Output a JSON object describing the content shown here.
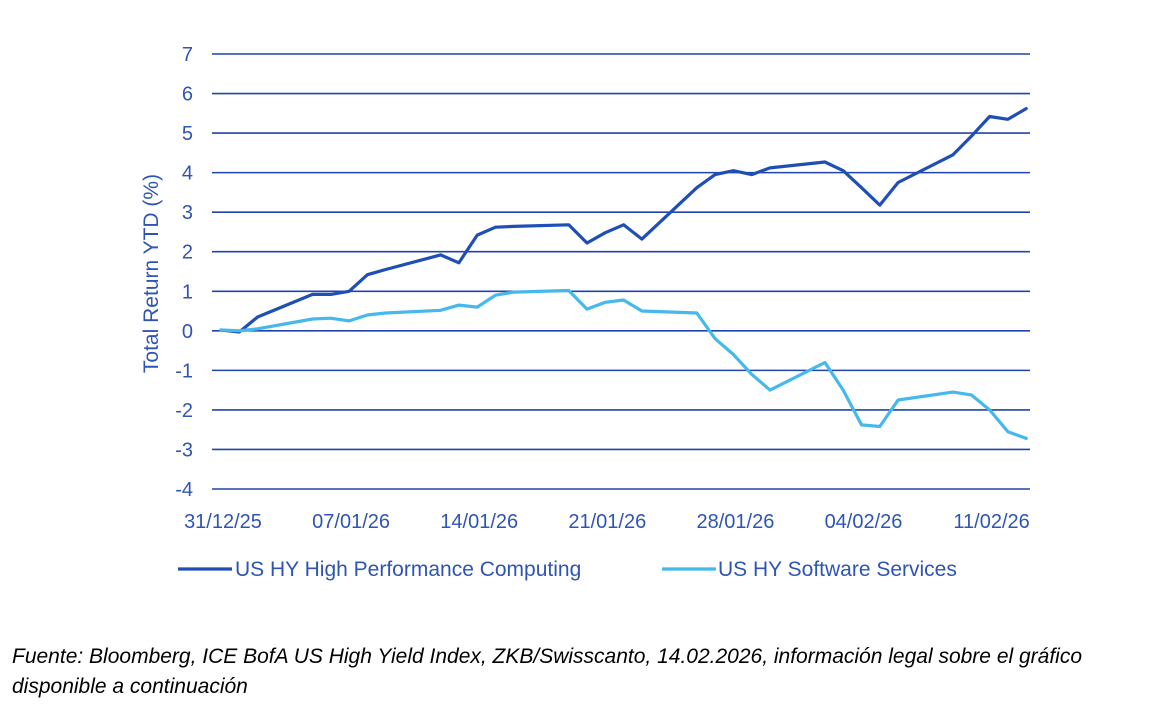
{
  "chart_data": {
    "type": "line",
    "title": "",
    "xlabel": "",
    "ylabel": "Total Return  YTD (%)",
    "ylim": [
      -4,
      7
    ],
    "yticks": [
      7,
      6,
      5,
      4,
      3,
      2,
      1,
      0,
      -1,
      -2,
      -3,
      -4
    ],
    "xticks": [
      "31/12/25",
      "07/01/26",
      "14/01/26",
      "21/01/26",
      "28/01/26",
      "04/02/26",
      "11/02/26"
    ],
    "x_days": [
      0,
      1,
      2,
      5,
      6,
      7,
      8,
      9,
      12,
      13,
      14,
      15,
      16,
      19,
      20,
      21,
      22,
      23,
      26,
      27,
      28,
      29,
      30,
      33,
      34,
      35,
      36,
      37,
      40,
      41,
      42,
      43,
      44
    ],
    "series": [
      {
        "name": "US HY High Performance Computing",
        "color": "#1f4fb5",
        "values": [
          0.02,
          -0.03,
          0.35,
          0.92,
          0.92,
          1.0,
          1.42,
          1.55,
          1.92,
          1.72,
          2.42,
          2.62,
          2.64,
          2.68,
          2.22,
          2.48,
          2.68,
          2.32,
          3.62,
          3.95,
          4.05,
          3.95,
          4.12,
          4.27,
          4.05,
          3.62,
          3.18,
          3.75,
          4.45,
          4.92,
          5.42,
          5.35,
          5.62
        ]
      },
      {
        "name": "US HY Software Services",
        "color": "#45b8ec",
        "values": [
          0.02,
          0.0,
          0.05,
          0.3,
          0.32,
          0.25,
          0.4,
          0.45,
          0.52,
          0.65,
          0.6,
          0.9,
          0.98,
          1.02,
          0.55,
          0.72,
          0.78,
          0.5,
          0.45,
          -0.2,
          -0.6,
          -1.1,
          -1.5,
          -0.8,
          -1.5,
          -2.38,
          -2.42,
          -1.75,
          -1.55,
          -1.62,
          -2.0,
          -2.55,
          -2.72
        ]
      }
    ],
    "legend": "bottom"
  },
  "source_text": "Fuente: Bloomberg, ICE BofA US High Yield Index, ZKB/Swisscanto, 14.02.2026, información legal sobre el gráfico disponible a continuación"
}
